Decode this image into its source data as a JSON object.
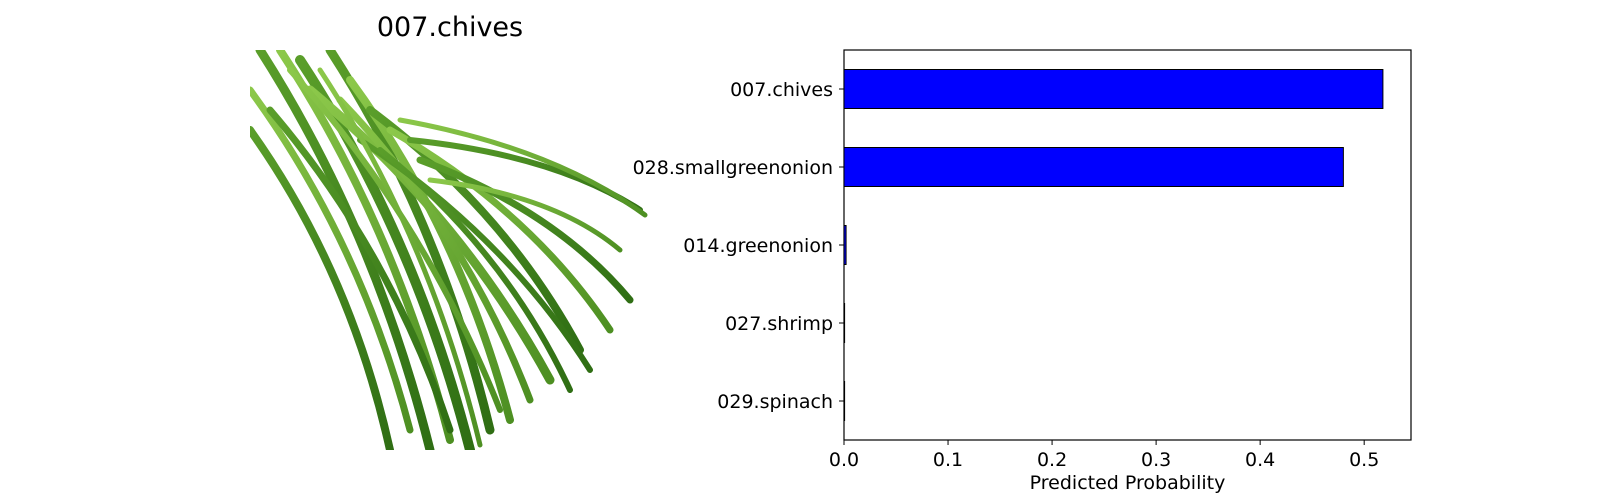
{
  "image_panel": {
    "title": "007.chives",
    "image_subject": "bunch of chives"
  },
  "chart_data": {
    "type": "bar",
    "orientation": "horizontal",
    "categories": [
      "007.chives",
      "028.smallgreenonion",
      "014.greenonion",
      "027.shrimp",
      "029.spinach"
    ],
    "values": [
      0.518,
      0.48,
      0.002,
      0.0005,
      0.0003
    ],
    "xlabel": "Predicted Probability",
    "ylabel": "",
    "xlim": [
      0.0,
      0.545
    ],
    "xticks": [
      "0.0",
      "0.1",
      "0.2",
      "0.3",
      "0.4",
      "0.5"
    ],
    "bar_color": "#0000ff",
    "edge_color": "#000000",
    "grid": false
  }
}
